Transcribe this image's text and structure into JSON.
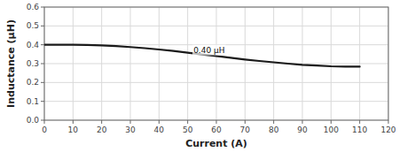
{
  "chart_data": {
    "type": "line",
    "x_label": "Current (A)",
    "y_label": "Inductance (μH)",
    "x": [
      0,
      5,
      10,
      15,
      20,
      25,
      30,
      35,
      40,
      45,
      50,
      55,
      60,
      65,
      70,
      75,
      80,
      85,
      90,
      95,
      100,
      105,
      110
    ],
    "values": [
      0.4,
      0.4,
      0.4,
      0.399,
      0.397,
      0.393,
      0.388,
      0.382,
      0.375,
      0.367,
      0.358,
      0.349,
      0.34,
      0.331,
      0.322,
      0.314,
      0.307,
      0.3,
      0.294,
      0.29,
      0.286,
      0.284,
      0.284
    ],
    "color": "#1a1a1a",
    "xlim": [
      0,
      120
    ],
    "ylim": [
      0,
      0.6
    ],
    "xticks": [
      0,
      10,
      20,
      30,
      40,
      50,
      60,
      70,
      80,
      90,
      100,
      110,
      120
    ],
    "yticks": [
      {
        "value": 0,
        "label": "0.0"
      },
      0.1,
      0.2,
      0.3,
      0.4,
      0.5,
      0.6
    ],
    "annotations": [
      {
        "text": "0.40 μH",
        "x": 52,
        "y": 0.372
      }
    ],
    "grid": true
  }
}
